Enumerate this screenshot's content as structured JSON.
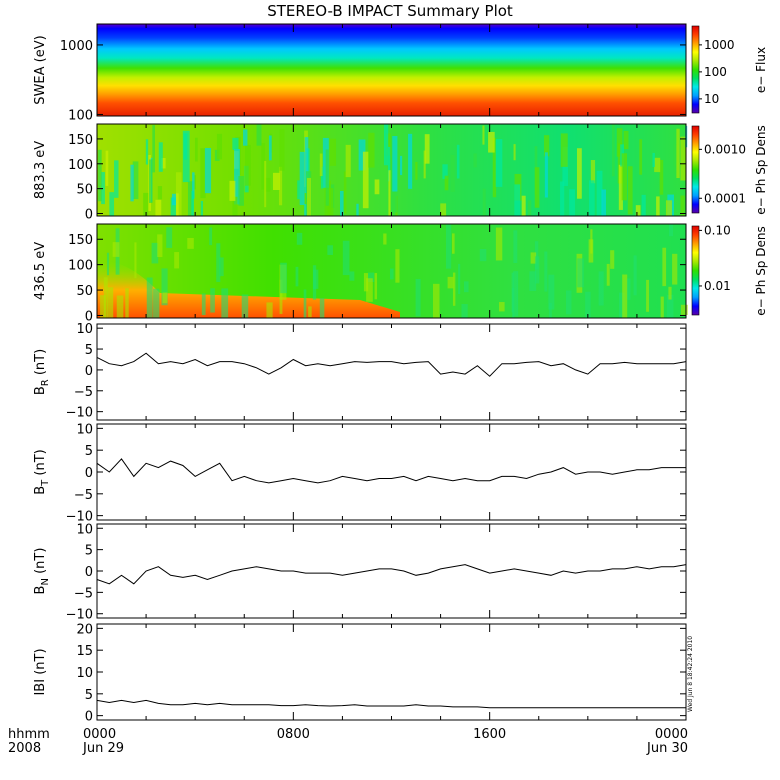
{
  "title": "STEREO-B IMPACT Summary Plot",
  "stamp": "Wed Jun  8 18:42:24 2010",
  "x_axis": {
    "row1_label": "hhmm",
    "row2_label": "2008",
    "ticks": [
      {
        "hours": 0,
        "time": "0000",
        "date": "Jun 29"
      },
      {
        "hours": 8,
        "time": "0800",
        "date": ""
      },
      {
        "hours": 16,
        "time": "1600",
        "date": ""
      },
      {
        "hours": 24,
        "time": "0000",
        "date": "Jun 30"
      }
    ],
    "range_hours": [
      0,
      24
    ]
  },
  "colors": {
    "rainbow": [
      "#5a00a8",
      "#0000ff",
      "#00a0ff",
      "#00e8e8",
      "#00e060",
      "#30e000",
      "#a8e800",
      "#ffff00",
      "#ffa000",
      "#ff4000",
      "#e00000"
    ]
  },
  "chart_data": [
    {
      "type": "heatmap",
      "ylabel": "SWEA (eV)",
      "y_scale": "log",
      "ylim": [
        95,
        2000
      ],
      "y_ticks": [
        "100",
        "1000"
      ],
      "colorbar": {
        "label": "e− Flux",
        "scale": "log",
        "ticks": [
          "10",
          "100",
          "1000"
        ],
        "range": [
          3,
          5000
        ]
      },
      "description_rows": [
        {
          "energy_eV": 1800,
          "flux": 5
        },
        {
          "energy_eV": 1400,
          "flux": 12
        },
        {
          "energy_eV": 1000,
          "flux": 40
        },
        {
          "energy_eV": 700,
          "flux": 120
        },
        {
          "energy_eV": 500,
          "flux": 250
        },
        {
          "energy_eV": 350,
          "flux": 500
        },
        {
          "energy_eV": 250,
          "flux": 900
        },
        {
          "energy_eV": 180,
          "flux": 1600
        },
        {
          "energy_eV": 130,
          "flux": 2500
        },
        {
          "energy_eV": 100,
          "flux": 3500
        }
      ]
    },
    {
      "type": "heatmap",
      "ylabel": "883.3 eV",
      "ylim": [
        -5,
        180
      ],
      "y_ticks": [
        "0",
        "50",
        "100",
        "150"
      ],
      "colorbar": {
        "label": "e− Ph Sp Dens",
        "scale": "log",
        "ticks": [
          "0.0001",
          "0.0010"
        ],
        "range": [
          5e-05,
          0.003
        ]
      },
      "typical_value": 0.0008
    },
    {
      "type": "heatmap",
      "ylabel": "436.5 eV",
      "ylim": [
        -5,
        180
      ],
      "y_ticks": [
        "0",
        "50",
        "100",
        "150"
      ],
      "colorbar": {
        "label": "e− Ph Sp Dens",
        "scale": "log",
        "ticks": [
          "0.01",
          "0.10"
        ],
        "range": [
          0.003,
          0.12
        ]
      },
      "typical_value": 0.03
    },
    {
      "type": "line",
      "ylabel_main": "B",
      "ylabel_sub": "R",
      "ylabel_unit": " (nT)",
      "ylim": [
        -12,
        11
      ],
      "y_ticks": [
        "−10",
        "−5",
        "0",
        "5",
        "10"
      ],
      "x_hours": [
        0,
        0.5,
        1,
        1.5,
        2,
        2.5,
        3,
        3.5,
        4,
        4.5,
        5,
        5.5,
        6,
        6.5,
        7,
        7.5,
        8,
        8.5,
        9,
        9.5,
        10,
        10.5,
        11,
        11.5,
        12,
        12.5,
        13,
        13.5,
        14,
        14.5,
        15,
        15.5,
        16,
        16.5,
        17,
        17.5,
        18,
        18.5,
        19,
        19.5,
        20,
        20.5,
        21,
        21.5,
        22,
        22.5,
        23,
        23.5,
        24
      ],
      "values": [
        3,
        1.5,
        1,
        2,
        4,
        1.5,
        2,
        1.5,
        2.5,
        1,
        2,
        2,
        1.5,
        0.5,
        -1,
        0.5,
        2.5,
        1,
        1.5,
        1,
        1.5,
        2,
        1.8,
        2,
        2,
        1.5,
        1.8,
        2,
        -1,
        -0.5,
        -1,
        1,
        -1.5,
        1.5,
        1.5,
        1.8,
        2,
        1,
        1.5,
        0,
        -1,
        1.5,
        1.5,
        1.8,
        1.5,
        1.5,
        1.5,
        1.5,
        2
      ]
    },
    {
      "type": "line",
      "ylabel_main": "B",
      "ylabel_sub": "T",
      "ylabel_unit": " (nT)",
      "ylim": [
        -11,
        11
      ],
      "y_ticks": [
        "−10",
        "−5",
        "0",
        "5",
        "10"
      ],
      "x_hours": [
        0,
        0.5,
        1,
        1.5,
        2,
        2.5,
        3,
        3.5,
        4,
        4.5,
        5,
        5.5,
        6,
        6.5,
        7,
        7.5,
        8,
        8.5,
        9,
        9.5,
        10,
        10.5,
        11,
        11.5,
        12,
        12.5,
        13,
        13.5,
        14,
        14.5,
        15,
        15.5,
        16,
        16.5,
        17,
        17.5,
        18,
        18.5,
        19,
        19.5,
        20,
        20.5,
        21,
        21.5,
        22,
        22.5,
        23,
        23.5,
        24
      ],
      "values": [
        2,
        0,
        3,
        -1,
        2,
        1,
        2.5,
        1.5,
        -1,
        0.5,
        2,
        -2,
        -1,
        -2,
        -2.5,
        -2,
        -1.5,
        -2,
        -2.5,
        -2,
        -1,
        -1.5,
        -2,
        -1.5,
        -1.5,
        -1,
        -2,
        -1,
        -1.5,
        -2,
        -1.5,
        -2,
        -2,
        -1,
        -1,
        -1.5,
        -0.5,
        0,
        1,
        -0.5,
        0,
        0,
        -0.5,
        0,
        0.5,
        0.5,
        1,
        1,
        1
      ]
    },
    {
      "type": "line",
      "ylabel_main": "B",
      "ylabel_sub": "N",
      "ylabel_unit": " (nT)",
      "ylim": [
        -11,
        11
      ],
      "y_ticks": [
        "−10",
        "−5",
        "0",
        "5",
        "10"
      ],
      "x_hours": [
        0,
        0.5,
        1,
        1.5,
        2,
        2.5,
        3,
        3.5,
        4,
        4.5,
        5,
        5.5,
        6,
        6.5,
        7,
        7.5,
        8,
        8.5,
        9,
        9.5,
        10,
        10.5,
        11,
        11.5,
        12,
        12.5,
        13,
        13.5,
        14,
        14.5,
        15,
        15.5,
        16,
        16.5,
        17,
        17.5,
        18,
        18.5,
        19,
        19.5,
        20,
        20.5,
        21,
        21.5,
        22,
        22.5,
        23,
        23.5,
        24
      ],
      "values": [
        -2,
        -3,
        -1,
        -3,
        0,
        1,
        -1,
        -1.5,
        -1,
        -2,
        -1,
        0,
        0.5,
        1,
        0.5,
        0,
        0,
        -0.5,
        -0.5,
        -0.5,
        -1,
        -0.5,
        0,
        0.5,
        0.5,
        0,
        -1,
        -0.5,
        0.5,
        1,
        1.5,
        0.5,
        -0.5,
        0,
        0.5,
        0,
        -0.5,
        -1,
        0,
        -0.5,
        0,
        0,
        0.5,
        0.5,
        1,
        0.5,
        1,
        1,
        1.5
      ]
    },
    {
      "type": "line",
      "ylabel_main": "IBI",
      "ylabel_sub": "",
      "ylabel_unit": " (nT)",
      "ylim": [
        -1,
        21
      ],
      "y_ticks": [
        "0",
        "5",
        "10",
        "15",
        "20"
      ],
      "x_hours": [
        0,
        0.5,
        1,
        1.5,
        2,
        2.5,
        3,
        3.5,
        4,
        4.5,
        5,
        5.5,
        6,
        6.5,
        7,
        7.5,
        8,
        8.5,
        9,
        9.5,
        10,
        10.5,
        11,
        11.5,
        12,
        12.5,
        13,
        13.5,
        14,
        14.5,
        15,
        15.5,
        16,
        16.5,
        17,
        17.5,
        18,
        18.5,
        19,
        19.5,
        20,
        20.5,
        21,
        21.5,
        22,
        22.5,
        23,
        23.5,
        24
      ],
      "values": [
        3.5,
        3,
        3.5,
        3,
        3.5,
        2.8,
        2.5,
        2.5,
        2.8,
        2.5,
        2.8,
        2.5,
        2.5,
        2.5,
        2.5,
        2.3,
        2.3,
        2.5,
        2.3,
        2.2,
        2.3,
        2.5,
        2.2,
        2.2,
        2.2,
        2.2,
        2.5,
        2.2,
        2.2,
        2,
        2,
        2,
        1.8,
        1.8,
        1.8,
        1.8,
        1.8,
        1.8,
        1.8,
        1.8,
        1.8,
        1.8,
        1.8,
        1.8,
        1.8,
        1.8,
        1.8,
        1.8,
        1.8
      ]
    }
  ]
}
